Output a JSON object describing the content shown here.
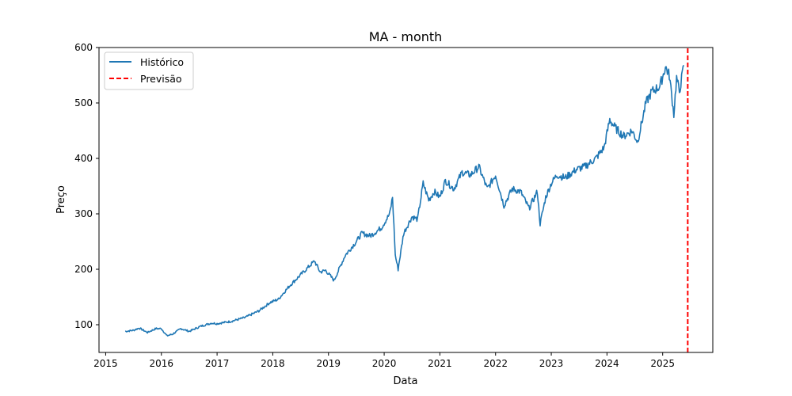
{
  "chart_data": {
    "type": "line",
    "title": "MA - month",
    "xlabel": "Data",
    "ylabel": "Preço",
    "xlim": [
      2014.88,
      2025.9
    ],
    "ylim": [
      50,
      600
    ],
    "x_ticks": [
      "2015",
      "2016",
      "2017",
      "2018",
      "2019",
      "2020",
      "2021",
      "2022",
      "2023",
      "2024",
      "2025"
    ],
    "y_ticks": [
      "100",
      "200",
      "300",
      "400",
      "500",
      "600"
    ],
    "legend": {
      "position": "top-left",
      "entries": [
        "Histórico",
        "Previsão"
      ]
    },
    "grid": false,
    "colors": {
      "historico": "#1f77b4",
      "previsao": "#ff0000"
    },
    "series": [
      {
        "name": "Histórico",
        "style": "solid",
        "x": [
          2015.35,
          2015.5,
          2015.6,
          2015.75,
          2015.9,
          2016.0,
          2016.1,
          2016.2,
          2016.35,
          2016.5,
          2016.7,
          2016.9,
          2017.0,
          2017.25,
          2017.5,
          2017.75,
          2017.95,
          2018.1,
          2018.3,
          2018.5,
          2018.6,
          2018.75,
          2018.85,
          2018.95,
          2019.1,
          2019.3,
          2019.5,
          2019.6,
          2019.75,
          2019.95,
          2020.1,
          2020.15,
          2020.2,
          2020.25,
          2020.35,
          2020.5,
          2020.6,
          2020.7,
          2020.8,
          2020.9,
          2021.0,
          2021.1,
          2021.25,
          2021.4,
          2021.55,
          2021.7,
          2021.85,
          2022.0,
          2022.15,
          2022.3,
          2022.45,
          2022.6,
          2022.75,
          2022.8,
          2022.9,
          2023.0,
          2023.1,
          2023.25,
          2023.45,
          2023.6,
          2023.8,
          2023.95,
          2024.05,
          2024.15,
          2024.3,
          2024.45,
          2024.55,
          2024.7,
          2024.8,
          2024.95,
          2025.05,
          2025.12,
          2025.2,
          2025.25,
          2025.3,
          2025.38
        ],
        "y": [
          88,
          90,
          94,
          86,
          93,
          93,
          80,
          83,
          93,
          88,
          97,
          103,
          102,
          106,
          113,
          125,
          140,
          146,
          170,
          190,
          200,
          215,
          195,
          198,
          180,
          225,
          250,
          265,
          260,
          275,
          300,
          330,
          225,
          200,
          265,
          295,
          290,
          355,
          325,
          340,
          330,
          360,
          345,
          375,
          370,
          385,
          345,
          370,
          315,
          345,
          340,
          310,
          340,
          282,
          330,
          355,
          370,
          365,
          380,
          385,
          400,
          420,
          470,
          455,
          440,
          450,
          430,
          500,
          520,
          530,
          565,
          550,
          480,
          545,
          520,
          568
        ]
      },
      {
        "name": "Previsão",
        "style": "dashed",
        "x": [
          2025.45,
          2025.45
        ],
        "y": [
          50,
          600
        ]
      }
    ]
  }
}
